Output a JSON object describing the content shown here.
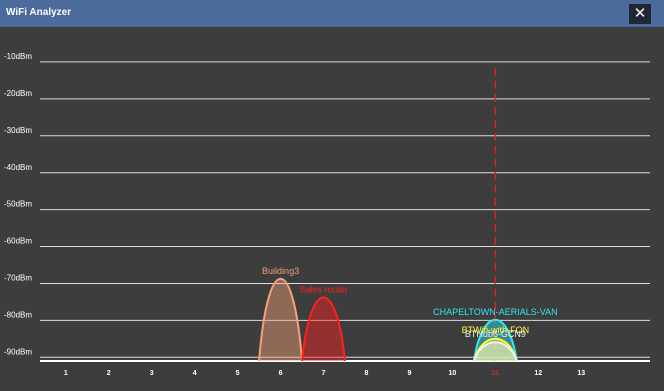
{
  "window": {
    "title": "WiFi Analyzer"
  },
  "chart_data": {
    "type": "wifi-spectrum",
    "xlim": [
      0.4,
      14.6
    ],
    "xticks": [
      1,
      2,
      3,
      4,
      5,
      6,
      7,
      8,
      9,
      10,
      11,
      12,
      13
    ],
    "ylim": [
      -91,
      0
    ],
    "yticks": [
      {
        "value": -10,
        "label": "-10dBm"
      },
      {
        "value": -20,
        "label": "-20dBm"
      },
      {
        "value": -30,
        "label": "-30dBm"
      },
      {
        "value": -40,
        "label": "-40dBm"
      },
      {
        "value": -50,
        "label": "-50dBm"
      },
      {
        "value": -60,
        "label": "-60dBm"
      },
      {
        "value": -70,
        "label": "-70dBm"
      },
      {
        "value": -80,
        "label": "-80dBm"
      },
      {
        "value": -90,
        "label": "-90dBm"
      }
    ],
    "grid": true,
    "highlight_channel": 11,
    "highlight_color": "#e02020",
    "series": [
      {
        "name": "Building3",
        "color": "#f4a07a",
        "channel": 6,
        "signal": -69
      },
      {
        "name": "Sales router",
        "color": "#ff2020",
        "channel": 7,
        "signal": -74
      },
      {
        "name": "CHAPELTOWN-AERIALS-VAN",
        "color": "#33e6f0",
        "channel": 11,
        "signal": -80
      },
      {
        "name": "BTWifi-with-FON",
        "color": "#ffff33",
        "channel": 11,
        "signal": -85
      },
      {
        "name": "BTHub6-GCN9",
        "color": "#f0f0f0",
        "channel": 11,
        "signal": -86
      }
    ]
  }
}
